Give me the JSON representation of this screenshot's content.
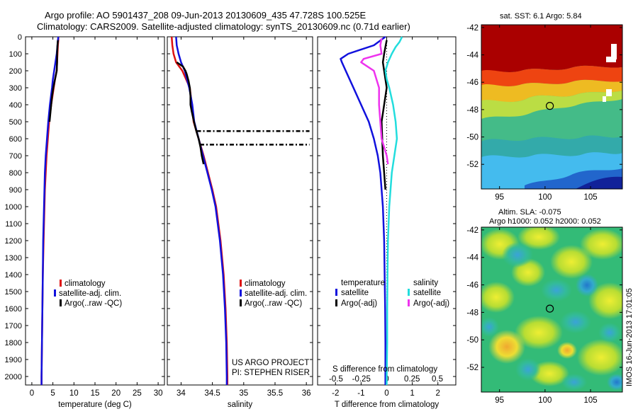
{
  "header": {
    "line1": "Argo profile: AO 5901437_208 09-Jun-2013 20130609_435 47.728S 100.525E",
    "line2": "Climatology: CARS2009. Satellite-adjusted climatology: synTS_20130609.nc (0.71d earlier)"
  },
  "colors": {
    "climatology": "#dd1111",
    "satellite": "#1111dd",
    "argo": "#000000",
    "satellite_salinity": "#22dddd",
    "argo_salinity": "#ee33ee"
  },
  "depth_axis": {
    "ticks": [
      "0",
      "100",
      "200",
      "300",
      "400",
      "500",
      "600",
      "700",
      "800",
      "900",
      "1000",
      "1100",
      "1200",
      "1300",
      "1400",
      "1500",
      "1600",
      "1700",
      "1800",
      "1900",
      "2000"
    ],
    "range": [
      0,
      2050
    ]
  },
  "chart_data": [
    {
      "id": "temperature",
      "type": "line",
      "xlabel": "temperature (deg C)",
      "xlim": [
        -1.5,
        31.5
      ],
      "ylim": [
        0,
        2050
      ],
      "x_ticks": [
        "0",
        "5",
        "10",
        "15",
        "20",
        "25",
        "30"
      ],
      "x_tick_values": [
        0,
        5,
        10,
        15,
        20,
        25,
        30
      ],
      "legend": [
        "climatology",
        "satellite-adj. clim.",
        "Argo(..raw -QC)"
      ],
      "series": [
        {
          "name": "climatology",
          "color_key": "climatology",
          "depth": [
            0,
            20,
            50,
            100,
            150,
            200,
            250,
            300,
            400,
            500,
            600,
            700,
            800,
            900,
            1000,
            1200,
            1400,
            1600,
            1800,
            2000,
            2050
          ],
          "values": [
            6.3,
            6.3,
            6.2,
            6.1,
            6.0,
            5.9,
            5.5,
            5.2,
            4.6,
            4.1,
            3.8,
            3.5,
            3.3,
            3.1,
            3.0,
            2.8,
            2.6,
            2.5,
            2.4,
            2.3,
            2.3
          ]
        },
        {
          "name": "satellite-adj. clim.",
          "color_key": "satellite",
          "depth": [
            0,
            20,
            50,
            100,
            150,
            200,
            250,
            300,
            400,
            500,
            600,
            700,
            800,
            900,
            1000,
            1200,
            1400,
            1600,
            1800,
            2000,
            2050
          ],
          "values": [
            6.3,
            6.2,
            6.1,
            5.9,
            5.6,
            5.3,
            5.0,
            4.8,
            4.3,
            3.9,
            3.6,
            3.3,
            3.1,
            3.0,
            2.9,
            2.7,
            2.6,
            2.5,
            2.4,
            2.3,
            2.3
          ]
        },
        {
          "name": "Argo(..raw -QC)",
          "color_key": "argo",
          "depth": [
            20,
            50,
            100,
            150,
            200,
            250,
            300,
            350,
            400,
            500
          ],
          "values": [
            6.2,
            6.1,
            6.0,
            6.0,
            5.9,
            5.5,
            5.1,
            4.8,
            4.6,
            4.2
          ]
        }
      ]
    },
    {
      "id": "salinity",
      "type": "line",
      "xlabel": "salinity",
      "xlim": [
        33.78,
        36.1
      ],
      "ylim": [
        0,
        2050
      ],
      "x_ticks": [
        "34",
        "34.5",
        "35",
        "35.5",
        "36"
      ],
      "x_tick_values": [
        34,
        34.5,
        35,
        35.5,
        36
      ],
      "legend": [
        "climatology",
        "satellite-adj. clim.",
        "Argo(..raw -QC)"
      ],
      "annotations": [
        "US ARGO PROJECT",
        "PI: STEPHEN RISER"
      ],
      "series": [
        {
          "name": "climatology",
          "color_key": "climatology",
          "depth": [
            0,
            50,
            100,
            150,
            200,
            300,
            400,
            500,
            600,
            700,
            800,
            900,
            1000,
            1200,
            1400,
            1600,
            1800,
            2000,
            2050
          ],
          "values": [
            33.85,
            33.86,
            33.88,
            33.92,
            34.02,
            34.14,
            34.17,
            34.2,
            34.28,
            34.36,
            34.43,
            34.5,
            34.56,
            34.63,
            34.68,
            34.71,
            34.73,
            34.74,
            34.74
          ]
        },
        {
          "name": "satellite-adj. clim.",
          "color_key": "satellite",
          "depth": [
            0,
            50,
            100,
            150,
            200,
            300,
            400,
            500,
            600,
            700,
            800,
            900,
            1000,
            1200,
            1400,
            1600,
            1800,
            2000,
            2050
          ],
          "values": [
            33.92,
            33.93,
            33.96,
            34.0,
            34.06,
            34.13,
            34.18,
            34.21,
            34.28,
            34.35,
            34.42,
            34.49,
            34.55,
            34.62,
            34.67,
            34.7,
            34.72,
            34.73,
            34.73
          ]
        },
        {
          "name": "Argo(..raw -QC)",
          "color_key": "argo",
          "depth": [
            150,
            160,
            175,
            200,
            220,
            260,
            300,
            350,
            400,
            440,
            490,
            550,
            600,
            650,
            700,
            750
          ],
          "values": [
            33.93,
            33.97,
            34.03,
            34.07,
            34.09,
            34.12,
            34.14,
            34.15,
            34.15,
            34.17,
            34.2,
            34.24,
            34.28,
            34.31,
            34.33,
            34.36
          ]
        }
      ]
    },
    {
      "id": "difference",
      "type": "line",
      "xlabel": "T difference from climatology",
      "xlabel_top": "S difference from climatology",
      "xlim": [
        -2.7,
        2.7
      ],
      "ylim": [
        0,
        2050
      ],
      "x_ticks": [
        "-2",
        "-1",
        "0",
        "1",
        "2"
      ],
      "x_tick_values": [
        -2,
        -1,
        0,
        1,
        2
      ],
      "x_ticks_top": [
        "-0.5",
        "-0.25",
        "0",
        "0.25",
        "0.5"
      ],
      "x_ticks_top_values": [
        -1.98,
        -0.99,
        0,
        0.99,
        1.98
      ],
      "legend_temperature_title": "temperature",
      "legend_salinity_title": "salinity",
      "legend": [
        "satellite",
        "Argo(-adj)",
        "satellite",
        "Argo(-adj)"
      ],
      "series": [
        {
          "name": "satellite",
          "color_key": "satellite",
          "depth": [
            0,
            50,
            100,
            130,
            150,
            200,
            300,
            400,
            500,
            600,
            700,
            800,
            900,
            1000,
            1200,
            1400,
            1600,
            1800,
            2000,
            2050
          ],
          "values": [
            -0.05,
            -0.5,
            -1.5,
            -1.8,
            -1.75,
            -1.6,
            -1.3,
            -1.0,
            -0.7,
            -0.5,
            -0.35,
            -0.25,
            -0.2,
            -0.15,
            -0.1,
            -0.08,
            -0.06,
            -0.05,
            -0.05,
            -0.05
          ]
        },
        {
          "name": "Argo(-adj)",
          "color_key": "argo",
          "depth": [
            20,
            60,
            100,
            150,
            200,
            250,
            300,
            400,
            500,
            700,
            800,
            900
          ],
          "values": [
            0.0,
            -0.05,
            -0.1,
            -0.15,
            -0.1,
            -0.05,
            0.0,
            -0.1,
            -0.2,
            -0.15,
            -0.1,
            -0.05
          ]
        },
        {
          "name": "satellite",
          "color_key": "satellite_salinity",
          "depth": [
            0,
            30,
            60,
            100,
            150,
            200,
            250,
            300,
            400,
            500,
            600,
            700,
            800,
            900,
            1000,
            1200,
            1400,
            1600,
            1800,
            2000,
            2050
          ],
          "values": [
            0.6,
            0.5,
            0.35,
            0.2,
            0.05,
            -0.05,
            0.0,
            0.1,
            0.25,
            0.35,
            0.4,
            0.3,
            0.2,
            0.15,
            0.1,
            0.05,
            0.03,
            0.02,
            0.02,
            0.0,
            0.0
          ]
        },
        {
          "name": "Argo(-adj)",
          "color_key": "argo_salinity",
          "depth": [
            10,
            50,
            100,
            130,
            150,
            160,
            200,
            300,
            400,
            500,
            600,
            700,
            750
          ],
          "values": [
            -0.2,
            -0.25,
            -0.2,
            -0.9,
            -1.0,
            -0.9,
            -0.5,
            -0.3,
            -0.3,
            -0.25,
            -0.2,
            0.0,
            0.05
          ]
        }
      ]
    }
  ],
  "salinity_argo_dashes": [
    {
      "depth": 555,
      "from": 34.25,
      "to": 36.05
    },
    {
      "depth": 635,
      "from": 34.3,
      "to": 36.05
    }
  ],
  "sst_map": {
    "title": "sat. SST: 6.1 Argo: 5.84",
    "y_ticks": [
      "-42",
      "-44",
      "-46",
      "-48",
      "-50",
      "-52"
    ],
    "x_ticks": [
      "95",
      "100",
      "105"
    ],
    "lon_range": [
      93,
      108.5
    ],
    "lat_range": [
      -53.8,
      -41.8
    ],
    "argo_position": {
      "lon": 100.525,
      "lat": -47.728
    }
  },
  "sla_map": {
    "title_line1": "Altim. SLA: -0.075",
    "title_line2": "Argo h1000: 0.052 h2000: 0.052",
    "y_ticks": [
      "-42",
      "-44",
      "-46",
      "-48",
      "-50",
      "-52"
    ],
    "x_ticks": [
      "95",
      "100",
      "105"
    ],
    "lon_range": [
      93,
      108.5
    ],
    "lat_range": [
      -53.8,
      -41.8
    ],
    "argo_position": {
      "lon": 100.525,
      "lat": -47.728
    }
  },
  "footer": {
    "imos_stamp": "IMOS 16-Jun-2013 17:01:05"
  }
}
